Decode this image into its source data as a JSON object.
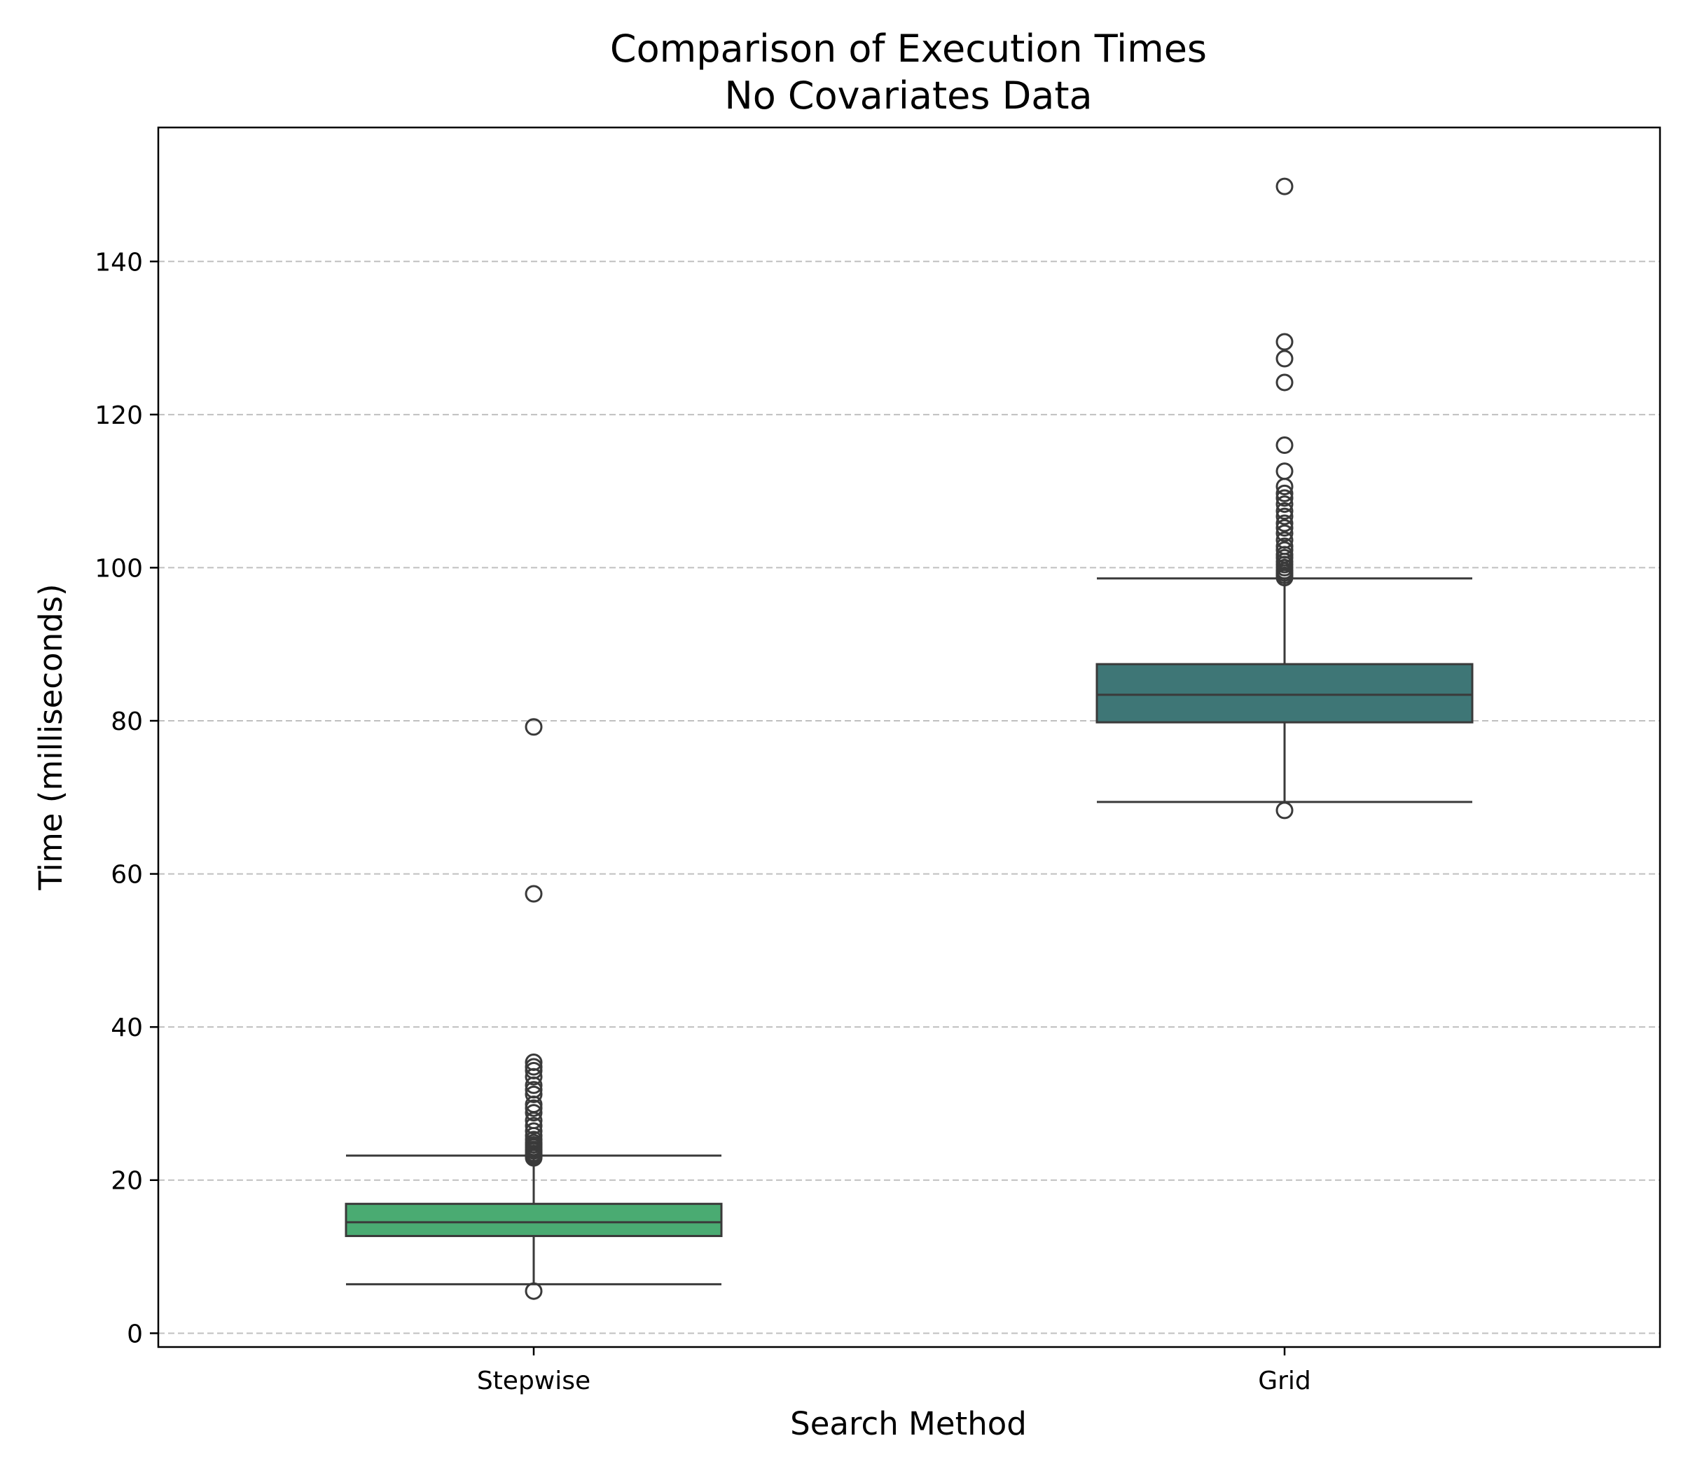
{
  "chart_data": {
    "type": "box",
    "title_lines": [
      "Comparison of Execution Times",
      "No Covariates Data"
    ],
    "xlabel": "Search Method",
    "ylabel": "Time (milliseconds)",
    "ylim": [
      -1.8,
      157.5
    ],
    "yticks": [
      0,
      20,
      40,
      60,
      80,
      100,
      120,
      140
    ],
    "grid": "y-dashed",
    "categories": [
      "Stepwise",
      "Grid"
    ],
    "boxes": [
      {
        "category": "Stepwise",
        "color": "#4aab72",
        "whisker_low": 6.4,
        "q1": 12.7,
        "median": 14.5,
        "q3": 16.9,
        "whisker_high": 23.2,
        "outliers": [
          5.5,
          22.9,
          23.1,
          23.3,
          23.5,
          23.8,
          24.0,
          24.3,
          24.6,
          24.9,
          25.3,
          25.8,
          26.4,
          27.1,
          27.8,
          28.8,
          29.4,
          29.9,
          31.2,
          31.8,
          32.4,
          33.5,
          34.3,
          34.8,
          35.4,
          57.4,
          79.2
        ]
      },
      {
        "category": "Grid",
        "color": "#3e7676",
        "whisker_low": 69.4,
        "q1": 79.8,
        "median": 83.4,
        "q3": 87.4,
        "whisker_high": 98.6,
        "outliers": [
          68.3,
          98.7,
          99.0,
          99.3,
          99.6,
          100.0,
          100.4,
          100.8,
          101.3,
          101.7,
          102.3,
          102.8,
          103.6,
          104.5,
          105.2,
          105.8,
          106.7,
          107.4,
          108.3,
          109.1,
          109.7,
          110.6,
          112.6,
          116.0,
          124.2,
          127.3,
          129.5,
          149.8
        ]
      }
    ]
  }
}
